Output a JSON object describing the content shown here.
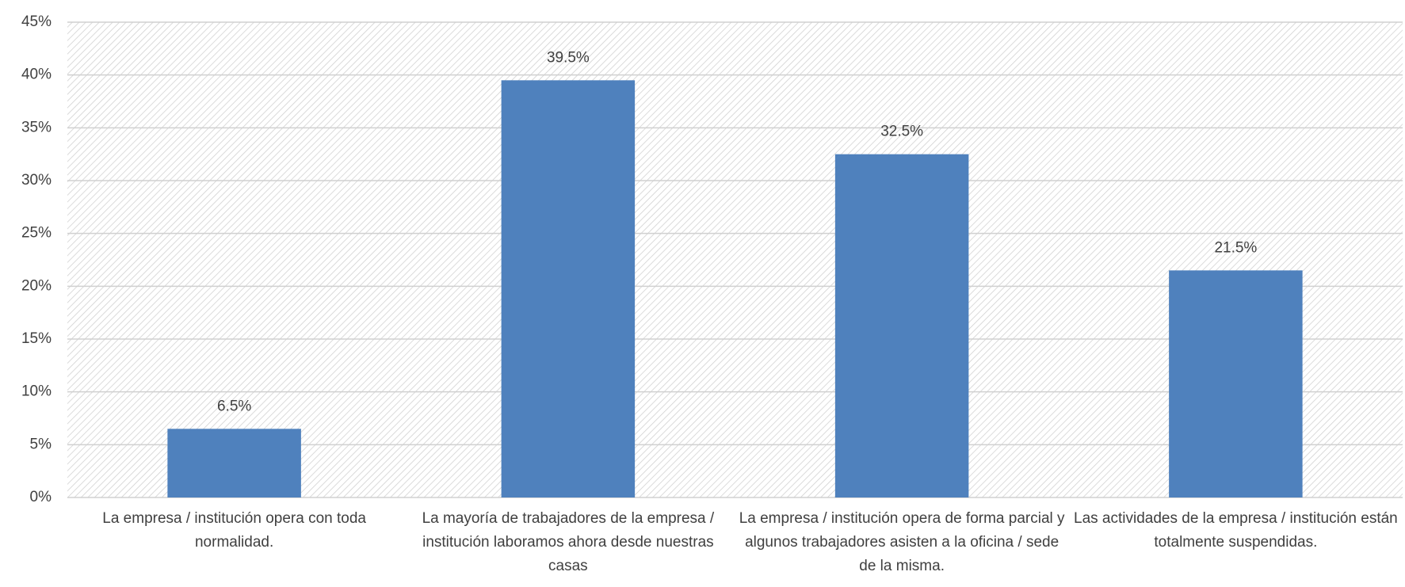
{
  "chart_data": {
    "type": "bar",
    "categories": [
      "La empresa / institución opera con toda normalidad.",
      "La mayoría de trabajadores de la empresa / institución laboramos ahora desde nuestras casas",
      "La empresa / institución opera de forma parcial y algunos trabajadores asisten a la oficina / sede de la misma.",
      "Las actividades de la empresa / institución están totalmente suspendidas."
    ],
    "values": [
      6.5,
      39.5,
      32.5,
      21.5
    ],
    "value_labels": [
      "6.5%",
      "39.5%",
      "32.5%",
      "21.5%"
    ],
    "color": "#4f81bd",
    "ylim": [
      0,
      45
    ],
    "yticks": [
      {
        "value": 0,
        "label": "0%"
      },
      {
        "value": 5,
        "label": "5%"
      },
      {
        "value": 10,
        "label": "10%"
      },
      {
        "value": 15,
        "label": "15%"
      },
      {
        "value": 20,
        "label": "20%"
      },
      {
        "value": 25,
        "label": "25%"
      },
      {
        "value": 30,
        "label": "30%"
      },
      {
        "value": 35,
        "label": "35%"
      },
      {
        "value": 40,
        "label": "40%"
      },
      {
        "value": 45,
        "label": "45%"
      }
    ],
    "grid": true
  }
}
